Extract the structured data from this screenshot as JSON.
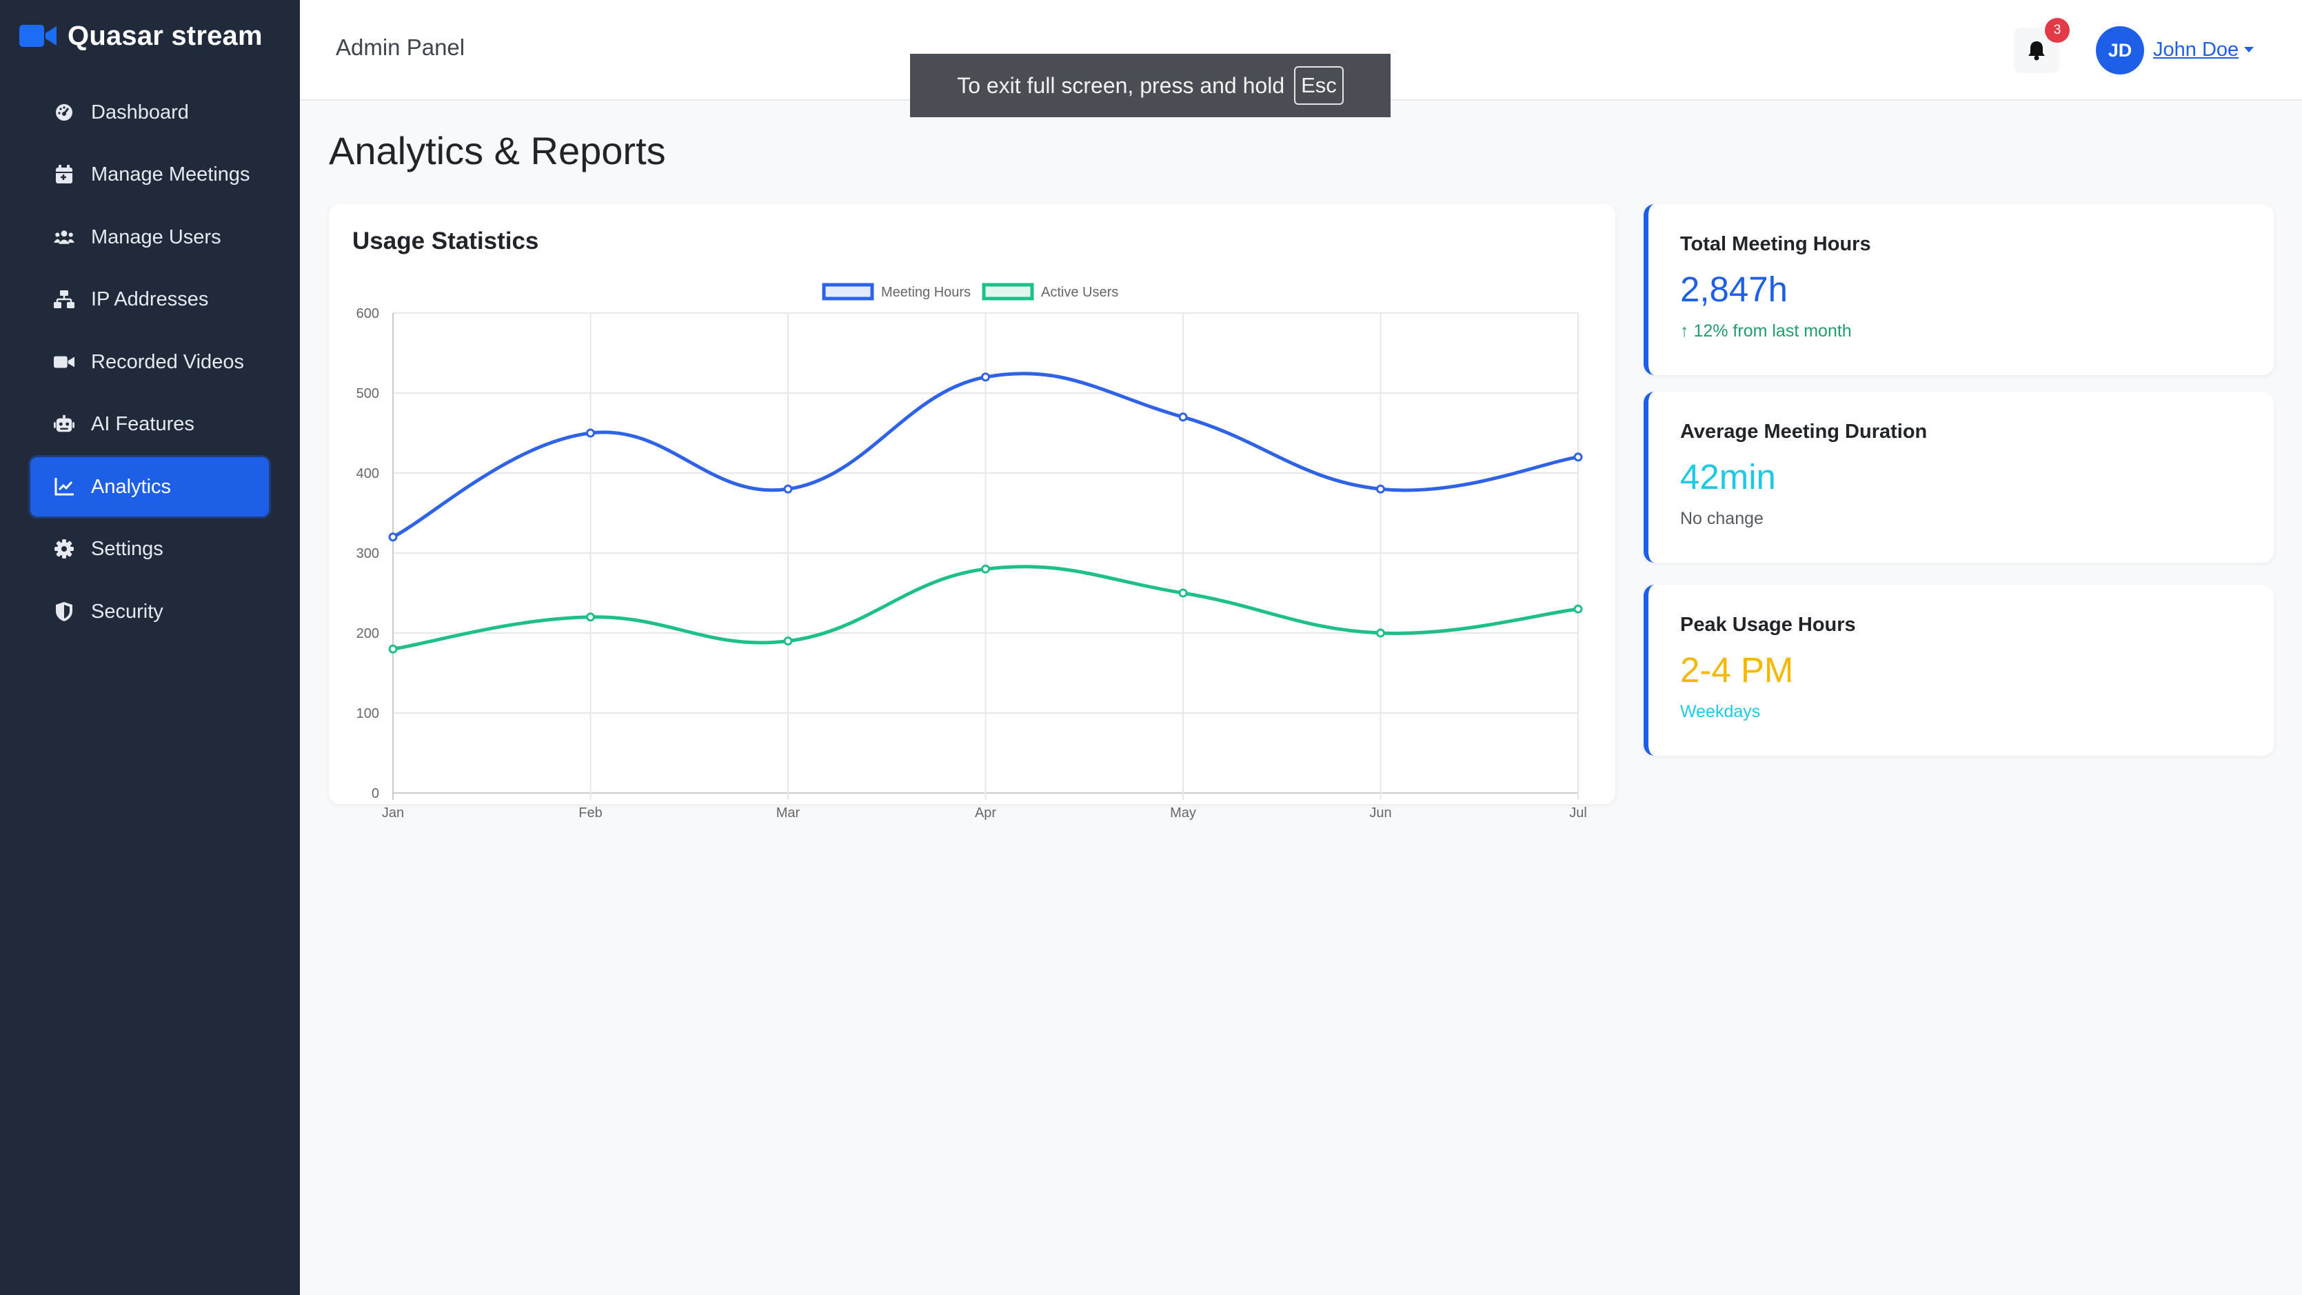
{
  "app": {
    "name": "Quasar stream"
  },
  "colors": {
    "sidebar_bg": "#212a3b",
    "accent": "#1d5fe6",
    "meeting_hours": "#2f63e6",
    "active_users": "#1fbf8a",
    "success": "#1f9d6b",
    "info": "#1ec9e6",
    "warning": "#f5b800",
    "badge": "#e23a46"
  },
  "sidebar": {
    "items": [
      {
        "label": "Dashboard",
        "icon": "dashboard-icon",
        "active": false
      },
      {
        "label": "Manage Meetings",
        "icon": "calendar-icon",
        "active": false
      },
      {
        "label": "Manage Users",
        "icon": "users-icon",
        "active": false
      },
      {
        "label": "IP Addresses",
        "icon": "network-icon",
        "active": false
      },
      {
        "label": "Recorded Videos",
        "icon": "video-icon",
        "active": false
      },
      {
        "label": "AI Features",
        "icon": "robot-icon",
        "active": false
      },
      {
        "label": "Analytics",
        "icon": "chart-icon",
        "active": true
      },
      {
        "label": "Settings",
        "icon": "gear-icon",
        "active": false
      },
      {
        "label": "Security",
        "icon": "shield-icon",
        "active": false
      }
    ]
  },
  "header": {
    "title": "Admin Panel",
    "notifications": {
      "count": "3",
      "icon": "bell-icon"
    },
    "user": {
      "initials": "JD",
      "name": "John Doe"
    }
  },
  "fullscreen_toast": {
    "text": "To exit full screen, press and hold",
    "key": "Esc"
  },
  "main": {
    "title": "Analytics & Reports",
    "chart_card": {
      "title": "Usage Statistics"
    }
  },
  "stats": [
    {
      "label": "Total Meeting Hours",
      "value": "2,847h",
      "sub": "↑ 12% from last month",
      "value_color": "#1d5fe6",
      "sub_color": "#1f9d6b"
    },
    {
      "label": "Average Meeting Duration",
      "value": "42min",
      "sub": "No change",
      "value_color": "#1ec9e6",
      "sub_color": "#555b62"
    },
    {
      "label": "Peak Usage Hours",
      "value": "2-4 PM",
      "sub": "Weekdays",
      "value_color": "#f5b800",
      "sub_color": "#1ec9e6"
    }
  ],
  "chart_data": {
    "type": "line",
    "categories": [
      "Jan",
      "Feb",
      "Mar",
      "Apr",
      "May",
      "Jun",
      "Jul"
    ],
    "series": [
      {
        "name": "Meeting Hours",
        "values": [
          320,
          450,
          380,
          520,
          470,
          380,
          420
        ],
        "color": "#2f63e6"
      },
      {
        "name": "Active Users",
        "values": [
          180,
          220,
          190,
          280,
          250,
          200,
          230
        ],
        "color": "#1fbf8a"
      }
    ],
    "yticks": [
      0,
      100,
      200,
      300,
      400,
      500,
      600
    ],
    "ylim": [
      0,
      600
    ],
    "grid": true,
    "legend": "top-center",
    "smooth": true
  }
}
